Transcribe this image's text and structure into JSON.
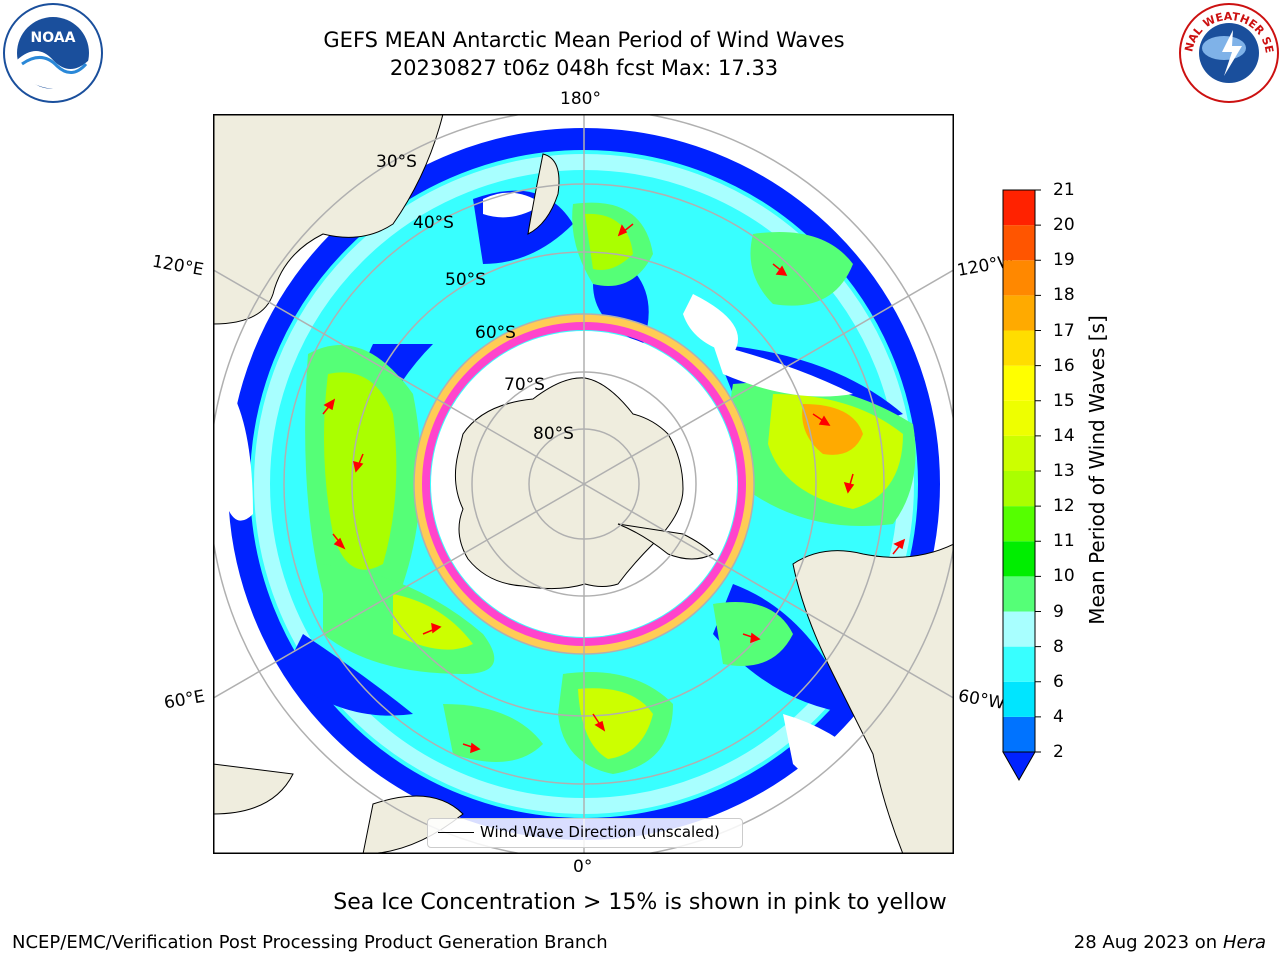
{
  "title": {
    "line1": "GEFS MEAN Antarctic Mean Period of Wind Waves",
    "line2": "20230827 t06z 048h fcst   Max: 17.33"
  },
  "logos": {
    "left": "noa-logo",
    "right": "nws-logo",
    "right_text": "NATIONAL WEATHER SERVICE"
  },
  "map": {
    "projection": "south-polar-stereographic",
    "longitude_labels": {
      "top": "180°",
      "bottom": "0°",
      "left_upper": "120°E",
      "right_upper": "120°W",
      "left_lower": "60°E",
      "right_lower": "60°W"
    },
    "latitude_labels": [
      "30°S",
      "40°S",
      "50°S",
      "60°S",
      "70°S",
      "80°S"
    ],
    "legend_label": "Wind Wave Direction (unscaled)",
    "land_color": "#efedde",
    "ice_colors": [
      "#ff44cc",
      "#ffcc55"
    ]
  },
  "colorbar": {
    "label": "Mean Period of Wind Waves [s]",
    "ticks": [
      "2",
      "4",
      "6",
      "8",
      "9",
      "10",
      "11",
      "12",
      "13",
      "14",
      "15",
      "16",
      "17",
      "18",
      "19",
      "20",
      "21"
    ],
    "colors": [
      "#0073ff",
      "#00e5ff",
      "#38ffff",
      "#a8ffff",
      "#55ff77",
      "#00ee00",
      "#55ff00",
      "#aaff00",
      "#ccff00",
      "#eeff00",
      "#ffff00",
      "#ffdd00",
      "#ffaa00",
      "#ff8800",
      "#ff5500",
      "#ff2200"
    ],
    "under_color": "#0022ff"
  },
  "footer": {
    "note": "Sea Ice Concentration > 15% is shown in pink to yellow",
    "credit_left": "NCEP/EMC/Verification Post Processing Product Generation Branch",
    "credit_right_date": "28 Aug 2023 on",
    "credit_right_host": "Hera"
  }
}
